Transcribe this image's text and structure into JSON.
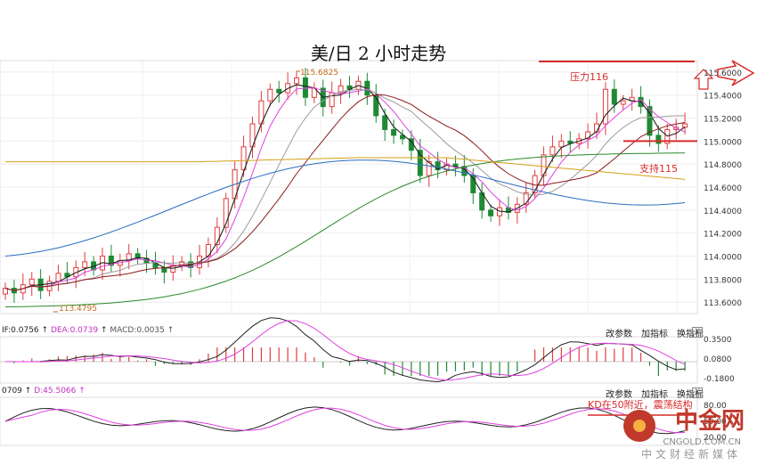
{
  "title": "美/日 2 小时走势",
  "annotations": {
    "high_label": "115.6825",
    "low_label": "113.4795",
    "resistance": "压力116",
    "support": "支持115",
    "kd_note": "KD在50附近，震荡结构"
  },
  "axis": {
    "price_ticks": [
      "115.6000",
      "115.4000",
      "115.2000",
      "115.0000",
      "114.8000",
      "114.6000",
      "114.4000",
      "114.2000",
      "114.0000",
      "113.8000",
      "113.6000"
    ],
    "macd_ticks": [
      "0.3500",
      "0.0800",
      "-0.1800"
    ],
    "kd_ticks": [
      "80.00",
      "50.00",
      "20.00"
    ]
  },
  "macd_panel": {
    "dif": "IF:0.0756",
    "dea": "DEA:0.0739",
    "macd": "MACD:0.0035"
  },
  "kd_panel": {
    "k": "0709",
    "d": "D:45.5066"
  },
  "buttons": {
    "params": "改参数",
    "add": "加指标",
    "switch": "换指标",
    "close": "X"
  },
  "watermark": {
    "brand": "中金网",
    "domain": "CNGOLD.COM.CN",
    "tagline": "中文财经新媒体"
  },
  "colors": {
    "up": "#e23c3c",
    "down": "#1e8a34",
    "ma1": "#222222",
    "ma2": "#e040e0",
    "ma3": "#9b9b9b",
    "ma4": "#8b1a1a",
    "ma5": "#2a8a2a",
    "ma6": "#2a6ec0",
    "ma7": "#d4a017",
    "annotation": "#d62b2b"
  },
  "chart_data": {
    "type": "candlestick",
    "y_range": [
      113.5,
      115.7
    ],
    "high_point": 115.6825,
    "low_point": 113.4795,
    "resistance_level": 116,
    "support_level": 115,
    "close_series": [
      113.72,
      113.68,
      113.75,
      113.8,
      113.7,
      113.78,
      113.85,
      113.82,
      113.9,
      113.95,
      113.88,
      114.0,
      113.92,
      113.96,
      114.02,
      113.98,
      113.94,
      113.9,
      113.86,
      113.92,
      113.95,
      113.9,
      114.0,
      114.1,
      114.25,
      114.5,
      114.75,
      114.95,
      115.15,
      115.35,
      115.45,
      115.42,
      115.5,
      115.55,
      115.38,
      115.46,
      115.3,
      115.42,
      115.48,
      115.45,
      115.52,
      115.4,
      115.22,
      115.1,
      115.05,
      115.02,
      114.92,
      114.7,
      114.82,
      114.75,
      114.8,
      114.78,
      114.7,
      114.55,
      114.4,
      114.35,
      114.42,
      114.38,
      114.45,
      114.55,
      114.7,
      114.88,
      114.95,
      115.0,
      114.98,
      115.02,
      115.08,
      115.15,
      115.45,
      115.32,
      115.35,
      115.38,
      115.3,
      115.05,
      114.98,
      115.1,
      115.12,
      115.15
    ]
  }
}
